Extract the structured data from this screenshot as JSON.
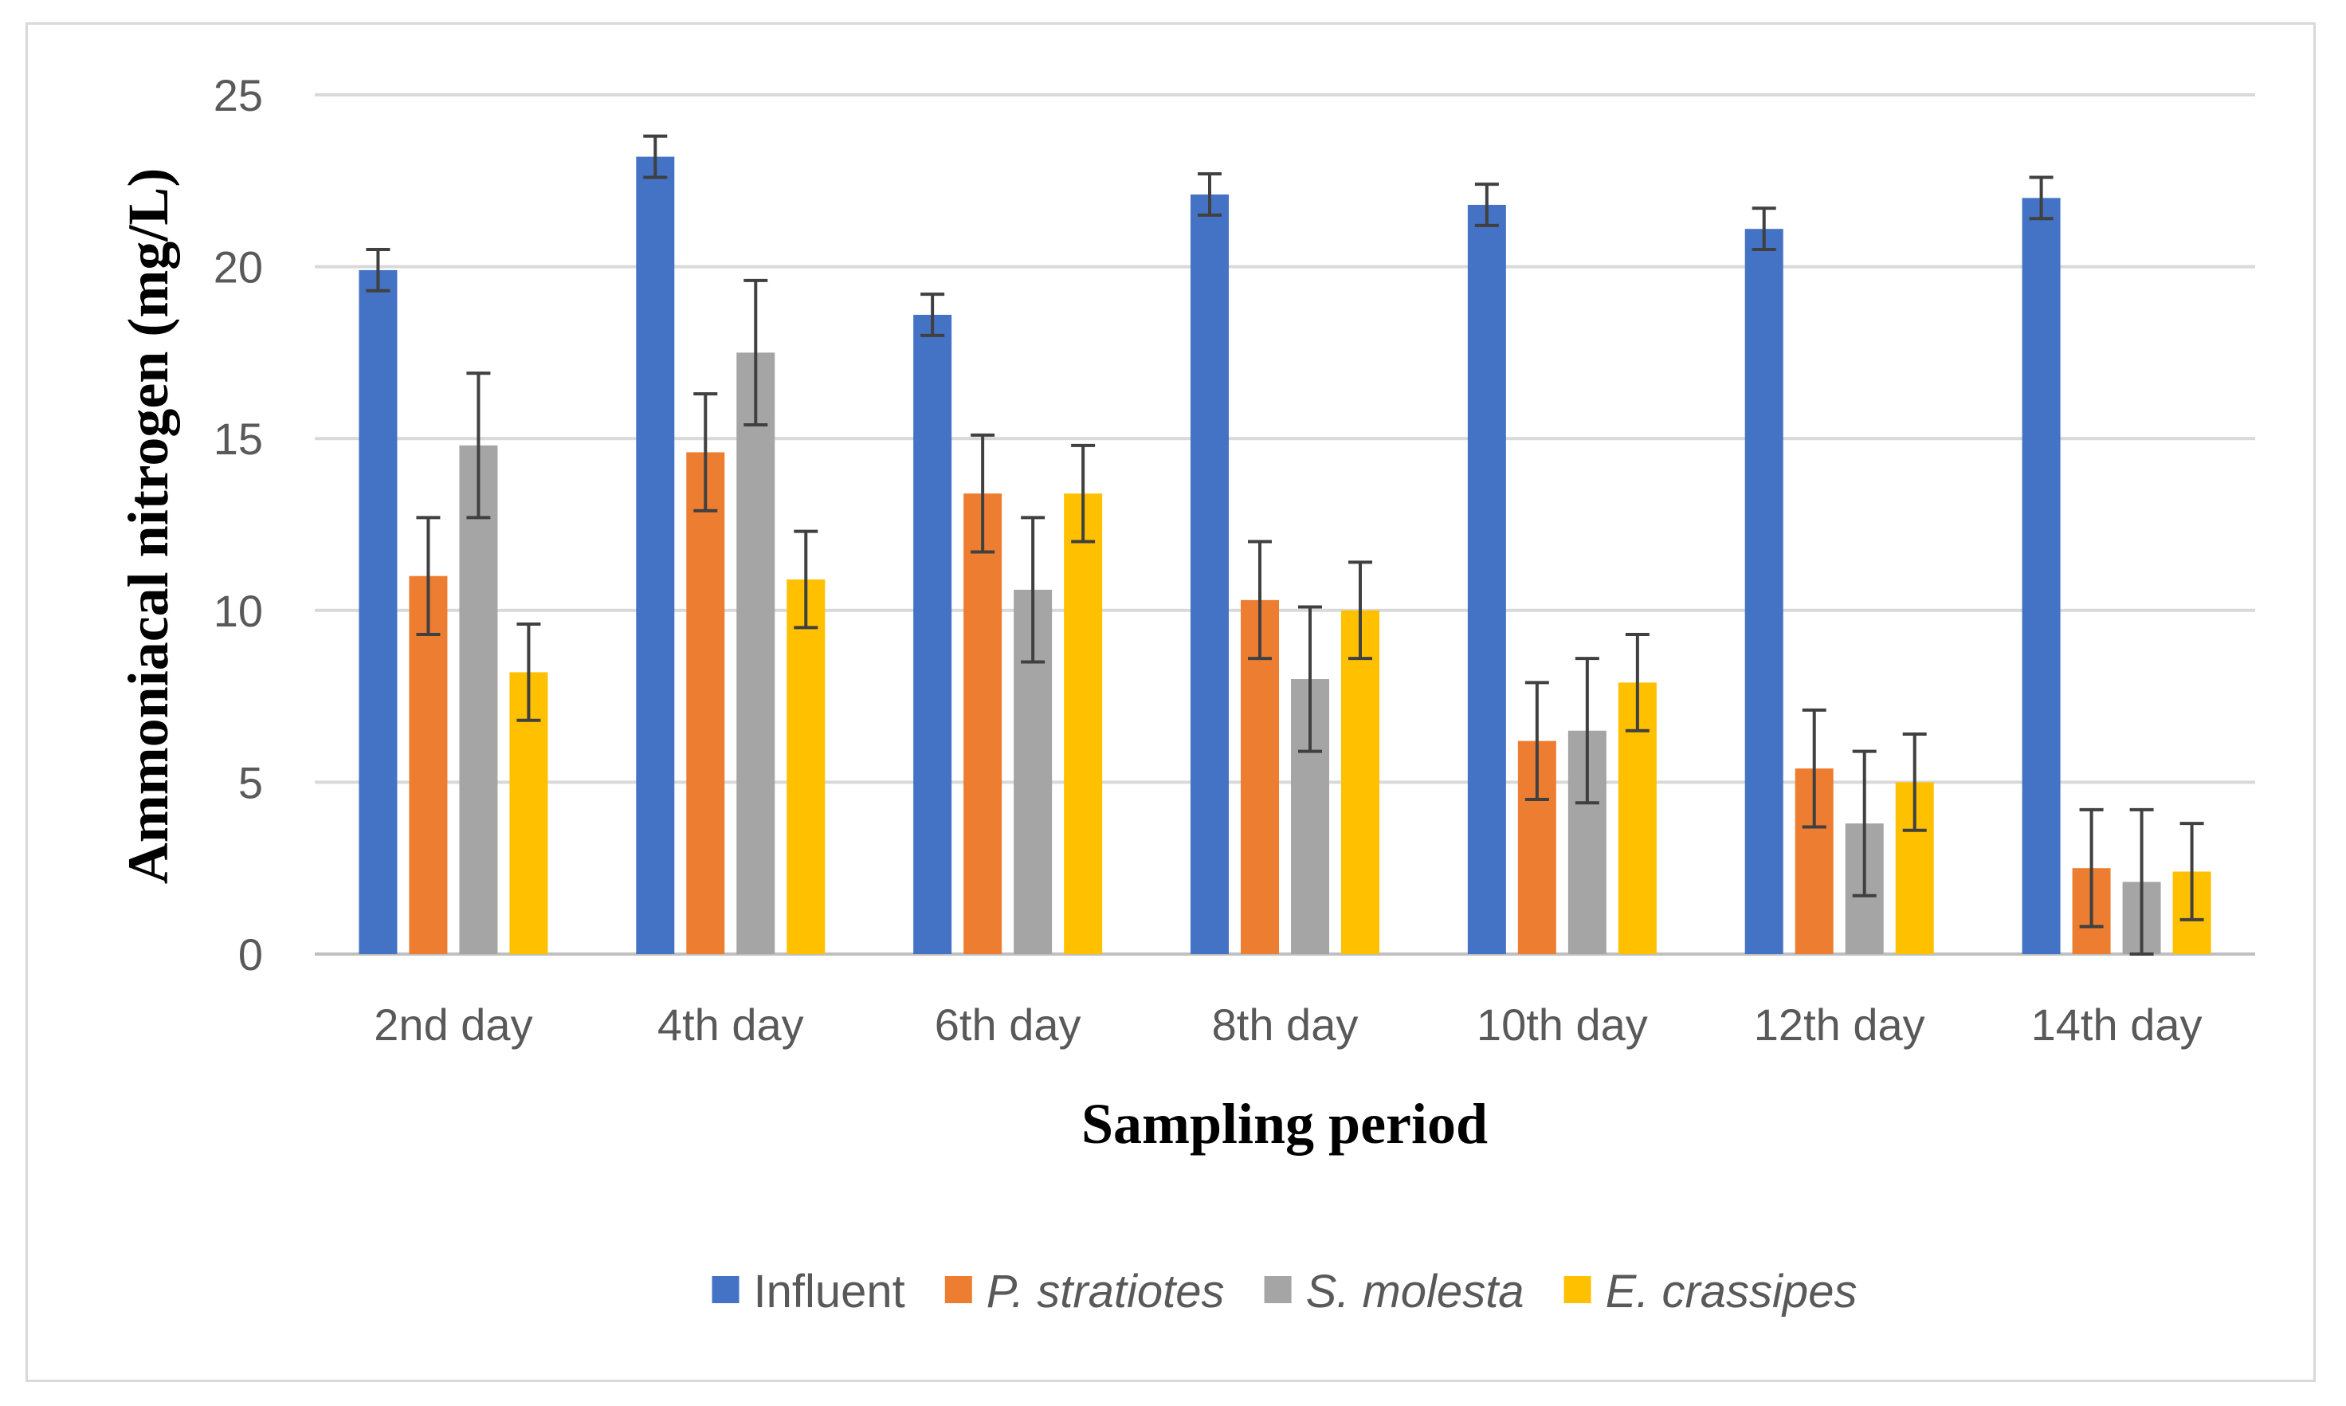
{
  "chart_data": {
    "type": "bar",
    "title": "",
    "xlabel": "Sampling period",
    "ylabel": "Ammoniacal nitrogen (mg/L)",
    "ylim": [
      0,
      25
    ],
    "yticks": [
      0,
      5,
      10,
      15,
      20,
      25
    ],
    "grid": true,
    "legend_position": "bottom",
    "categories": [
      "2nd day",
      "4th day",
      "6th day",
      "8th day",
      "10th day",
      "12th day",
      "14th day"
    ],
    "series": [
      {
        "name": "Influent",
        "italic": false,
        "color": "#4472C4",
        "values": [
          19.9,
          23.2,
          18.6,
          22.1,
          21.8,
          21.1,
          22.0
        ],
        "errors": [
          0.6,
          0.6,
          0.6,
          0.6,
          0.6,
          0.6,
          0.6
        ]
      },
      {
        "name": "P. stratiotes",
        "italic": true,
        "color": "#ED7D31",
        "values": [
          11.0,
          14.6,
          13.4,
          10.3,
          6.2,
          5.4,
          2.5
        ],
        "errors": [
          1.7,
          1.7,
          1.7,
          1.7,
          1.7,
          1.7,
          1.7
        ]
      },
      {
        "name": "S. molesta",
        "italic": true,
        "color": "#A5A5A5",
        "values": [
          14.8,
          17.5,
          10.6,
          8.0,
          6.5,
          3.8,
          2.1
        ],
        "errors": [
          2.1,
          2.1,
          2.1,
          2.1,
          2.1,
          2.1,
          2.1
        ]
      },
      {
        "name": "E. crassipes",
        "italic": true,
        "color": "#FFC000",
        "values": [
          8.2,
          10.9,
          13.4,
          10.0,
          7.9,
          5.0,
          2.4
        ],
        "errors": [
          1.4,
          1.4,
          1.4,
          1.4,
          1.4,
          1.4,
          1.4
        ]
      }
    ]
  }
}
